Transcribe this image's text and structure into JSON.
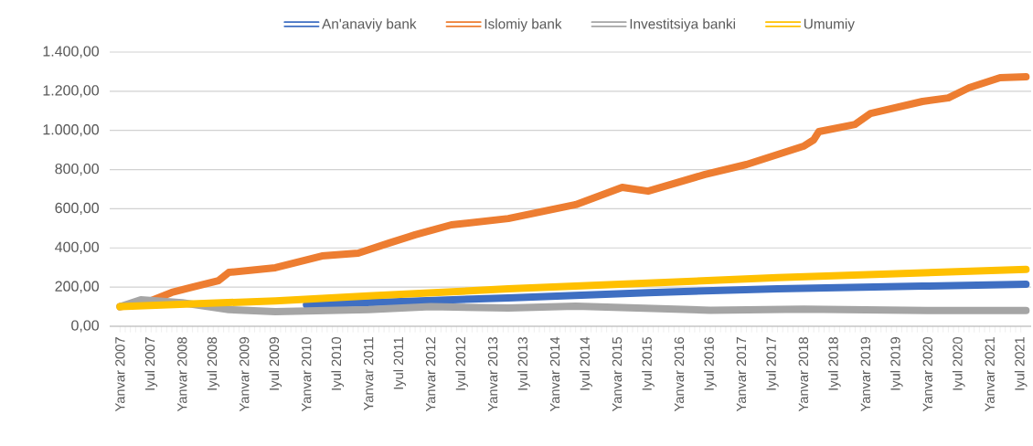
{
  "chart_data": {
    "type": "line",
    "series": [
      {
        "name": "An'anaviy bank",
        "color": "#3f6fc2",
        "x": [
          "2010-01",
          "2013-04",
          "2015-07",
          "2017-08",
          "2019-12",
          "2021-08"
        ],
        "values": [
          110,
          145,
          172,
          191,
          205,
          215
        ]
      },
      {
        "name": "Islomiy bank",
        "color": "#ed7d31",
        "x": [
          "2007-01",
          "2007-06",
          "2007-11",
          "2008-03",
          "2008-08",
          "2008-10",
          "2009-07",
          "2010-04",
          "2010-11",
          "2011-05",
          "2011-10",
          "2012-05",
          "2013-04",
          "2014-05",
          "2015-02",
          "2015-07",
          "2016-06",
          "2017-02",
          "2018-01",
          "2018-03",
          "2018-04",
          "2018-11",
          "2019-02",
          "2019-12",
          "2020-05",
          "2020-09",
          "2021-03",
          "2021-08"
        ],
        "values": [
          100,
          120,
          173,
          200,
          233,
          275,
          299,
          359,
          373,
          425,
          467,
          518,
          550,
          621,
          709,
          690,
          775,
          826,
          919,
          952,
          994,
          1031,
          1087,
          1148,
          1166,
          1218,
          1269,
          1274
        ]
      },
      {
        "name": "Investitsiya banki",
        "color": "#a5a5a5",
        "x": [
          "2007-01",
          "2007-05",
          "2008-01",
          "2008-10",
          "2009-07",
          "2011-01",
          "2012-01",
          "2013-04",
          "2014-05",
          "2016-07",
          "2018-01",
          "2020-01",
          "2021-08"
        ],
        "values": [
          100,
          135,
          120,
          85,
          75,
          85,
          100,
          93,
          103,
          82,
          88,
          80,
          80
        ]
      },
      {
        "name": "Umumiy",
        "color": "#ffc000",
        "x": [
          "2007-01",
          "2009-07",
          "2011-01",
          "2013-04",
          "2015-07",
          "2017-08",
          "2021-08"
        ],
        "values": [
          100,
          130,
          155,
          191,
          220,
          248,
          290
        ]
      }
    ],
    "xlim": [
      "2006-11",
      "2021-09"
    ],
    "xticks": [
      {
        "value": "2007-01",
        "label": "Yanvar 2007"
      },
      {
        "value": "2007-07",
        "label": "Iyul 2007"
      },
      {
        "value": "2008-01",
        "label": "Yanvar 2008"
      },
      {
        "value": "2008-07",
        "label": "Iyul 2008"
      },
      {
        "value": "2009-01",
        "label": "Yanvar 2009"
      },
      {
        "value": "2009-07",
        "label": "Iyul 2009"
      },
      {
        "value": "2010-01",
        "label": "Yanvar 2010"
      },
      {
        "value": "2010-07",
        "label": "Iyul 2010"
      },
      {
        "value": "2011-01",
        "label": "Yanvar 2011"
      },
      {
        "value": "2011-07",
        "label": "Iyul 2011"
      },
      {
        "value": "2012-01",
        "label": "Yanvar 2012"
      },
      {
        "value": "2012-07",
        "label": "Iyul 2012"
      },
      {
        "value": "2013-01",
        "label": "Yanvar 2013"
      },
      {
        "value": "2013-07",
        "label": "Iyul 2013"
      },
      {
        "value": "2014-01",
        "label": "Yanvar 2014"
      },
      {
        "value": "2014-07",
        "label": "Iyul 2014"
      },
      {
        "value": "2015-01",
        "label": "Yanvar 2015"
      },
      {
        "value": "2015-07",
        "label": "Iyul 2015"
      },
      {
        "value": "2016-01",
        "label": "Yanvar 2016"
      },
      {
        "value": "2016-07",
        "label": "Iyul 2016"
      },
      {
        "value": "2017-01",
        "label": "Yanvar 2017"
      },
      {
        "value": "2017-07",
        "label": "Iyul 2017"
      },
      {
        "value": "2018-01",
        "label": "Yanvar 2018"
      },
      {
        "value": "2018-07",
        "label": "Iyul 2018"
      },
      {
        "value": "2019-01",
        "label": "Yanvar 2019"
      },
      {
        "value": "2019-07",
        "label": "Iyul 2019"
      },
      {
        "value": "2020-01",
        "label": "Yanvar 2020"
      },
      {
        "value": "2020-07",
        "label": "Iyul 2020"
      },
      {
        "value": "2021-01",
        "label": "Yanvar 2021"
      },
      {
        "value": "2021-07",
        "label": "Iyul 2021"
      }
    ],
    "ylim": [
      0,
      1400
    ],
    "yticks": [
      {
        "value": 0,
        "label": "0,00"
      },
      {
        "value": 200,
        "label": "200,00"
      },
      {
        "value": 400,
        "label": "400,00"
      },
      {
        "value": 600,
        "label": "600,00"
      },
      {
        "value": 800,
        "label": "800,00"
      },
      {
        "value": 1000,
        "label": "1.000,00"
      },
      {
        "value": 1200,
        "label": "1.200,00"
      },
      {
        "value": 1400,
        "label": "1.400,00"
      }
    ],
    "grid": "y",
    "legend": "top",
    "line_style": "solid"
  }
}
